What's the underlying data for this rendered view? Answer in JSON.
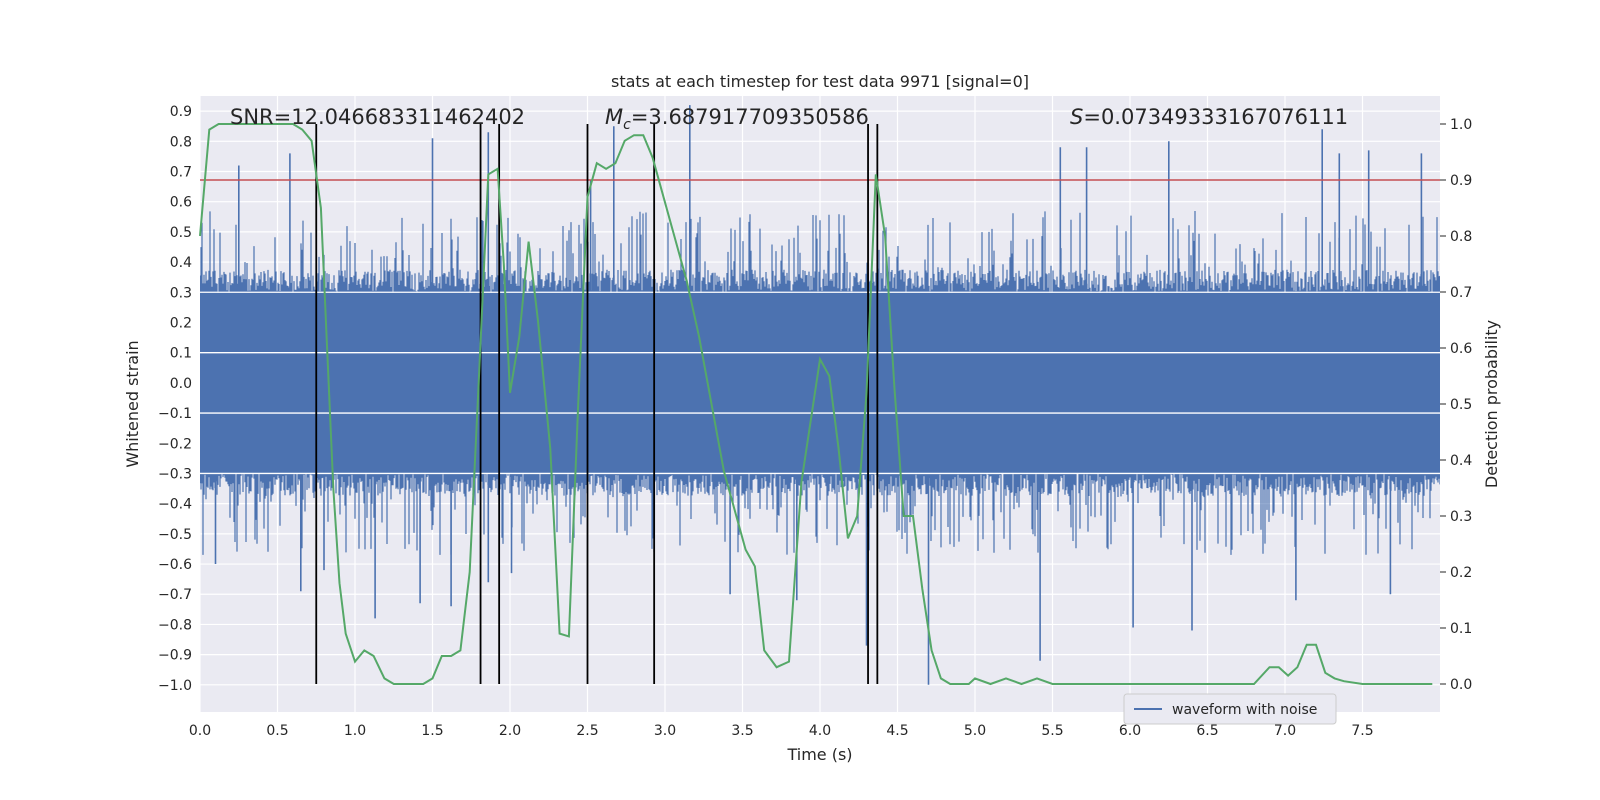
{
  "chart_data": {
    "type": "line",
    "title": "stats at each timestep for test data 9971 [signal=0]",
    "xlabel": "Time (s)",
    "ylabel": "Whitened strain",
    "y2label": "Detection probability",
    "xlim": [
      0.0,
      8.0
    ],
    "ylim": [
      -1.09,
      0.95
    ],
    "y2lim": [
      -0.05,
      1.05
    ],
    "xticks": [
      "0.0",
      "0.5",
      "1.0",
      "1.5",
      "2.0",
      "2.5",
      "3.0",
      "3.5",
      "4.0",
      "4.5",
      "5.0",
      "5.5",
      "6.0",
      "6.5",
      "7.0",
      "7.5"
    ],
    "yticks": [
      "0.9",
      "0.8",
      "0.7",
      "0.6",
      "0.5",
      "0.4",
      "0.3",
      "0.2",
      "0.1",
      "0.0",
      "−0.1",
      "−0.2",
      "−0.3",
      "−0.4",
      "−0.5",
      "−0.6",
      "−0.7",
      "−0.8",
      "−0.9",
      "−1.0"
    ],
    "y2ticks": [
      "1.0",
      "0.9",
      "0.8",
      "0.7",
      "0.6",
      "0.5",
      "0.4",
      "0.3",
      "0.2",
      "0.1",
      "0.0"
    ],
    "annotations": {
      "snr": "SNR=12.046683311462402",
      "mc_symbol": "M",
      "mc_sub": "c",
      "mc_value": "=3.687917709350586",
      "s_symbol": "S",
      "s_value": "=0.07349333167076111"
    },
    "threshold": 0.9,
    "vlines": [
      0.75,
      1.81,
      1.93,
      2.5,
      2.93,
      4.31,
      4.37
    ],
    "waveform": {
      "name": "waveform with noise",
      "color": "#4c72b0",
      "core_amplitude": 0.3,
      "typical_peak": 0.45,
      "tall_spikes_pos": [
        [
          0.25,
          0.72
        ],
        [
          0.58,
          0.76
        ],
        [
          1.5,
          0.81
        ],
        [
          1.86,
          0.83
        ],
        [
          2.52,
          0.67
        ],
        [
          2.67,
          0.85
        ],
        [
          3.16,
          0.92
        ],
        [
          5.55,
          0.78
        ],
        [
          5.72,
          0.78
        ],
        [
          6.25,
          0.8
        ],
        [
          7.24,
          0.84
        ],
        [
          7.35,
          0.76
        ],
        [
          7.54,
          0.77
        ],
        [
          7.88,
          0.76
        ]
      ],
      "tall_spikes_neg": [
        [
          0.1,
          -0.6
        ],
        [
          0.65,
          -0.69
        ],
        [
          0.8,
          -0.62
        ],
        [
          1.13,
          -0.78
        ],
        [
          1.42,
          -0.73
        ],
        [
          1.62,
          -0.74
        ],
        [
          1.86,
          -0.66
        ],
        [
          2.01,
          -0.63
        ],
        [
          3.42,
          -0.7
        ],
        [
          3.85,
          -0.72
        ],
        [
          4.3,
          -0.87
        ],
        [
          4.7,
          -1.0
        ],
        [
          5.42,
          -0.92
        ],
        [
          6.02,
          -0.81
        ],
        [
          6.4,
          -0.82
        ],
        [
          7.07,
          -0.72
        ],
        [
          7.68,
          -0.7
        ]
      ]
    },
    "probability": {
      "color": "#55a868",
      "x": [
        0.0,
        0.06,
        0.12,
        0.18,
        0.24,
        0.3,
        0.4,
        0.5,
        0.6,
        0.66,
        0.72,
        0.78,
        0.82,
        0.86,
        0.9,
        0.94,
        1.0,
        1.06,
        1.12,
        1.19,
        1.25,
        1.31,
        1.38,
        1.44,
        1.5,
        1.56,
        1.62,
        1.68,
        1.74,
        1.8,
        1.86,
        1.92,
        1.96,
        2.0,
        2.06,
        2.12,
        2.18,
        2.26,
        2.32,
        2.38,
        2.44,
        2.5,
        2.56,
        2.62,
        2.68,
        2.74,
        2.8,
        2.86,
        2.92,
        2.98,
        3.06,
        3.14,
        3.22,
        3.3,
        3.38,
        3.46,
        3.52,
        3.58,
        3.64,
        3.72,
        3.8,
        3.88,
        4.0,
        4.06,
        4.12,
        4.18,
        4.24,
        4.3,
        4.36,
        4.42,
        4.48,
        4.54,
        4.6,
        4.66,
        4.72,
        4.78,
        4.84,
        4.9,
        4.96,
        5.0,
        5.1,
        5.2,
        5.3,
        5.4,
        5.5,
        5.6,
        5.8,
        6.0,
        6.2,
        6.4,
        6.6,
        6.8,
        6.9,
        6.96,
        7.02,
        7.08,
        7.14,
        7.2,
        7.26,
        7.32,
        7.38,
        7.5,
        7.6,
        7.7,
        7.8,
        7.95
      ],
      "y": [
        0.8,
        0.99,
        1.0,
        1.0,
        1.0,
        1.0,
        1.0,
        1.0,
        1.0,
        0.99,
        0.97,
        0.85,
        0.6,
        0.35,
        0.18,
        0.09,
        0.04,
        0.06,
        0.05,
        0.01,
        0.0,
        0.0,
        0.0,
        0.0,
        0.01,
        0.05,
        0.05,
        0.06,
        0.2,
        0.55,
        0.91,
        0.92,
        0.75,
        0.52,
        0.62,
        0.79,
        0.65,
        0.42,
        0.09,
        0.085,
        0.5,
        0.87,
        0.93,
        0.92,
        0.93,
        0.97,
        0.98,
        0.98,
        0.94,
        0.88,
        0.8,
        0.72,
        0.62,
        0.5,
        0.38,
        0.3,
        0.24,
        0.21,
        0.06,
        0.03,
        0.04,
        0.36,
        0.58,
        0.55,
        0.42,
        0.26,
        0.3,
        0.52,
        0.91,
        0.8,
        0.53,
        0.3,
        0.3,
        0.17,
        0.06,
        0.01,
        0.0,
        0.0,
        0.0,
        0.01,
        0.0,
        0.01,
        0.0,
        0.01,
        0.0,
        0.0,
        0.0,
        0.0,
        0.0,
        0.0,
        0.0,
        0.0,
        0.03,
        0.03,
        0.015,
        0.03,
        0.07,
        0.07,
        0.02,
        0.01,
        0.005,
        0.0,
        0.0,
        0.0,
        0.0,
        0.0
      ]
    },
    "threshold_color": "#c44e52",
    "legend": {
      "label": "waveform with noise",
      "location": "lower-right"
    }
  }
}
